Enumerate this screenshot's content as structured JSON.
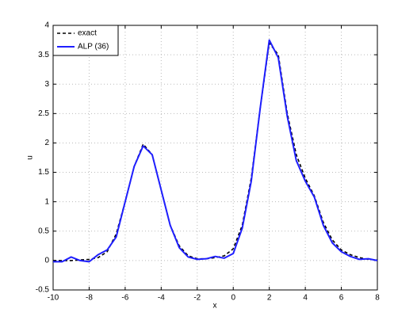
{
  "chart_data": {
    "type": "line",
    "x_label": "x",
    "y_label": "u",
    "x": [
      -10,
      -9.5,
      -9,
      -8.5,
      -8,
      -7.5,
      -7,
      -6.5,
      -6,
      -5.5,
      -5,
      -4.5,
      -4,
      -3.5,
      -3,
      -2.5,
      -2,
      -1.5,
      -1,
      -0.5,
      0,
      0.5,
      1,
      1.5,
      2,
      2.5,
      3,
      3.5,
      4,
      4.5,
      5,
      5.5,
      6,
      6.5,
      7,
      7.5,
      8
    ],
    "series": [
      {
        "name": "exact",
        "color": "#000000",
        "dashed": true,
        "values": [
          0.0,
          0.0,
          0.0,
          0.01,
          0.02,
          0.05,
          0.15,
          0.45,
          1.0,
          1.6,
          1.98,
          1.8,
          1.2,
          0.6,
          0.25,
          0.08,
          0.03,
          0.03,
          0.05,
          0.08,
          0.2,
          0.6,
          1.4,
          2.6,
          3.7,
          3.5,
          2.5,
          1.8,
          1.4,
          1.1,
          0.65,
          0.35,
          0.18,
          0.1,
          0.05,
          0.02,
          0.01
        ]
      },
      {
        "name": "ALP (36)",
        "color": "#1f1fff",
        "dashed": false,
        "values": [
          -0.02,
          -0.02,
          0.06,
          0.0,
          -0.02,
          0.1,
          0.18,
          0.4,
          1.0,
          1.6,
          1.95,
          1.8,
          1.2,
          0.6,
          0.22,
          0.06,
          0.02,
          0.03,
          0.07,
          0.04,
          0.12,
          0.55,
          1.35,
          2.6,
          3.75,
          3.45,
          2.45,
          1.7,
          1.35,
          1.08,
          0.6,
          0.3,
          0.15,
          0.07,
          0.02,
          0.03,
          0.0
        ]
      }
    ],
    "xlim": [
      -10,
      8
    ],
    "xticks": [
      -10,
      -8,
      -6,
      -4,
      -2,
      0,
      2,
      4,
      6,
      8
    ],
    "ylim": [
      -0.5,
      4
    ],
    "yticks": [
      -0.5,
      0,
      0.5,
      1,
      1.5,
      2,
      2.5,
      3,
      3.5,
      4
    ],
    "grid": true,
    "legend": "upper-left"
  }
}
